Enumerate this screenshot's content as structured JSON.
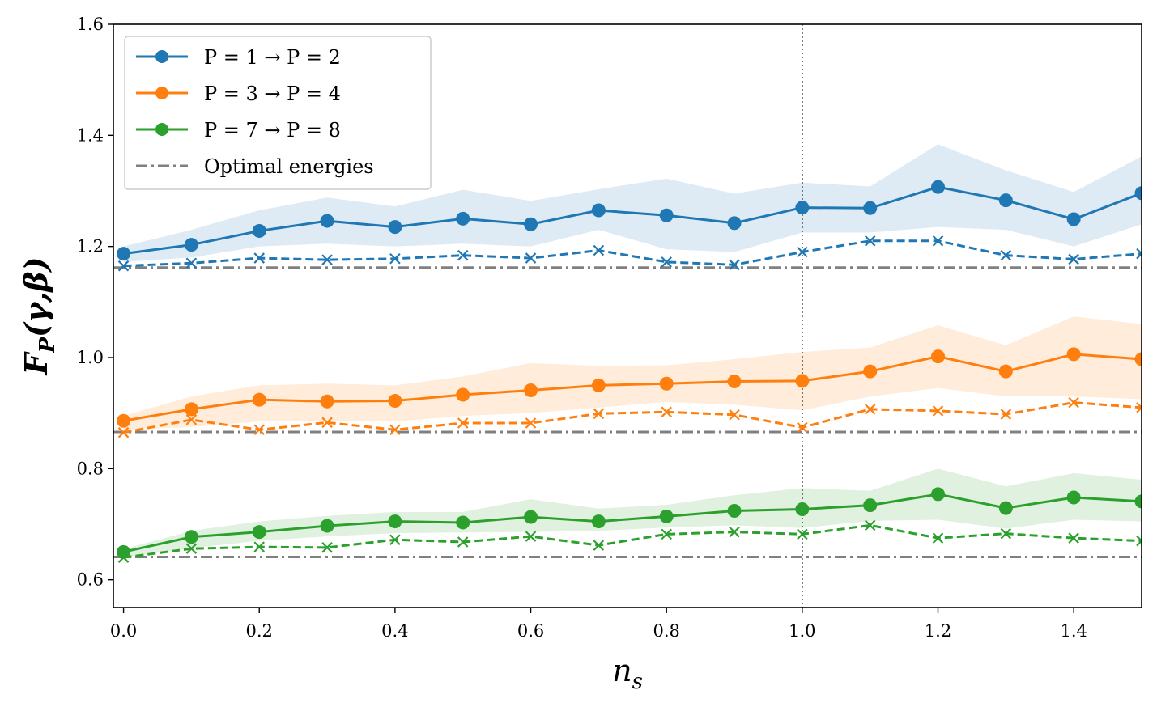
{
  "chart_data": {
    "type": "line",
    "x": [
      0.0,
      0.1,
      0.2,
      0.3,
      0.4,
      0.5,
      0.6,
      0.7,
      0.8,
      0.9,
      1.0,
      1.1,
      1.2,
      1.3,
      1.4,
      1.5
    ],
    "xlabel": "n_s",
    "xlabel_main": "n",
    "xlabel_sub": "s",
    "ylabel": "F_P(γ,β)",
    "ylabel_main": "F",
    "ylabel_sub": "P",
    "ylabel_args": "(γ,β)",
    "xlim": [
      -0.015,
      1.5
    ],
    "ylim": [
      0.55,
      1.6
    ],
    "xticks": [
      0.0,
      0.2,
      0.4,
      0.6,
      0.8,
      1.0,
      1.2,
      1.4
    ],
    "xtick_labels": [
      "0.0",
      "0.2",
      "0.4",
      "0.6",
      "0.8",
      "1.0",
      "1.2",
      "1.4"
    ],
    "yticks": [
      0.6,
      0.8,
      1.0,
      1.2,
      1.4,
      1.6
    ],
    "ytick_labels": [
      "0.6",
      "0.8",
      "1.0",
      "1.2",
      "1.4",
      "1.6"
    ],
    "vertical_line_x": 1.0,
    "grid": false,
    "legend_position": "top-left",
    "series": [
      {
        "name": "P = 1 → P = 2",
        "color": "#1f77b4",
        "mean": [
          1.187,
          1.203,
          1.228,
          1.246,
          1.235,
          1.25,
          1.24,
          1.265,
          1.256,
          1.242,
          1.27,
          1.269,
          1.307,
          1.283,
          1.249,
          1.296
        ],
        "upper": [
          1.2,
          1.23,
          1.265,
          1.288,
          1.272,
          1.302,
          1.282,
          1.303,
          1.322,
          1.295,
          1.315,
          1.308,
          1.384,
          1.337,
          1.298,
          1.362
        ],
        "lower": [
          1.172,
          1.18,
          1.2,
          1.205,
          1.2,
          1.205,
          1.2,
          1.23,
          1.195,
          1.19,
          1.225,
          1.225,
          1.235,
          1.23,
          1.2,
          1.24
        ],
        "best": [
          1.165,
          1.17,
          1.179,
          1.176,
          1.178,
          1.184,
          1.179,
          1.193,
          1.172,
          1.167,
          1.19,
          1.21,
          1.21,
          1.184,
          1.177,
          1.187
        ],
        "optimal": 1.162
      },
      {
        "name": "P = 3 → P = 4",
        "color": "#ff7f0e",
        "mean": [
          0.886,
          0.907,
          0.924,
          0.921,
          0.922,
          0.933,
          0.941,
          0.95,
          0.953,
          0.957,
          0.958,
          0.975,
          1.002,
          0.975,
          1.006,
          0.997
        ],
        "upper": [
          0.895,
          0.93,
          0.95,
          0.953,
          0.95,
          0.966,
          0.99,
          0.985,
          0.986,
          0.997,
          1.01,
          1.018,
          1.058,
          1.022,
          1.074,
          1.06
        ],
        "lower": [
          0.87,
          0.875,
          0.885,
          0.885,
          0.885,
          0.895,
          0.9,
          0.91,
          0.92,
          0.915,
          0.905,
          0.93,
          0.945,
          0.93,
          0.93,
          0.925
        ],
        "best": [
          0.865,
          0.888,
          0.87,
          0.883,
          0.87,
          0.882,
          0.882,
          0.899,
          0.902,
          0.897,
          0.874,
          0.907,
          0.904,
          0.898,
          0.919,
          0.91
        ],
        "optimal": 0.866
      },
      {
        "name": "P = 7 → P = 8",
        "color": "#2ca02c",
        "mean": [
          0.65,
          0.677,
          0.686,
          0.697,
          0.705,
          0.703,
          0.713,
          0.705,
          0.714,
          0.724,
          0.727,
          0.734,
          0.754,
          0.729,
          0.748,
          0.741
        ],
        "upper": [
          0.655,
          0.688,
          0.705,
          0.715,
          0.722,
          0.722,
          0.745,
          0.728,
          0.735,
          0.752,
          0.765,
          0.76,
          0.8,
          0.768,
          0.792,
          0.78
        ],
        "lower": [
          0.64,
          0.657,
          0.67,
          0.678,
          0.684,
          0.685,
          0.686,
          0.688,
          0.694,
          0.698,
          0.693,
          0.706,
          0.708,
          0.692,
          0.708,
          0.705
        ],
        "best": [
          0.64,
          0.656,
          0.659,
          0.658,
          0.672,
          0.668,
          0.678,
          0.662,
          0.682,
          0.686,
          0.682,
          0.698,
          0.675,
          0.683,
          0.675,
          0.67
        ],
        "optimal": 0.641
      }
    ],
    "optimal_label": "Optimal energies",
    "optimal_color": "#808080"
  }
}
